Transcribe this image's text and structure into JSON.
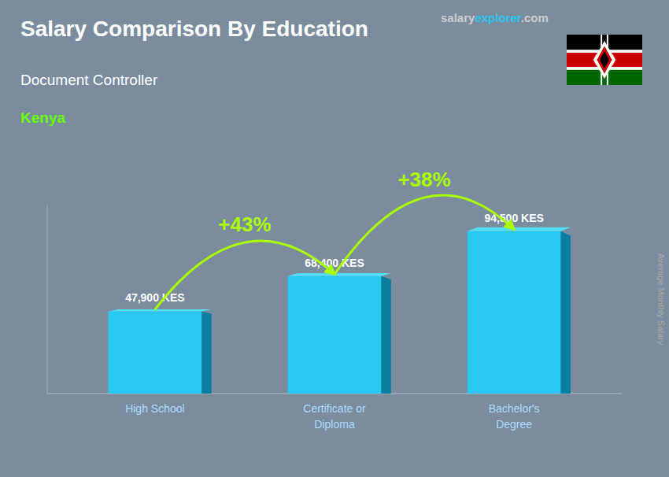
{
  "chart_data": {
    "type": "bar",
    "title": "Salary Comparison By Education",
    "subtitle": "Document Controller",
    "country": "Kenya",
    "watermark": [
      "salary",
      "explorer",
      ".com"
    ],
    "ylabel": "Average Monthly Salary",
    "categories": [
      "High School",
      "Certificate or\nDiploma",
      "Bachelor's\nDegree"
    ],
    "values": [
      47900,
      68400,
      94500
    ],
    "value_labels": [
      "47,900 KES",
      "68,400 KES",
      "94,500 KES"
    ],
    "change_labels": [
      "+43%",
      "+38%"
    ],
    "color": "#29c8f0",
    "ylim": [
      0,
      110000
    ],
    "data_labels": true,
    "tick_labels": "x",
    "grid": false
  }
}
